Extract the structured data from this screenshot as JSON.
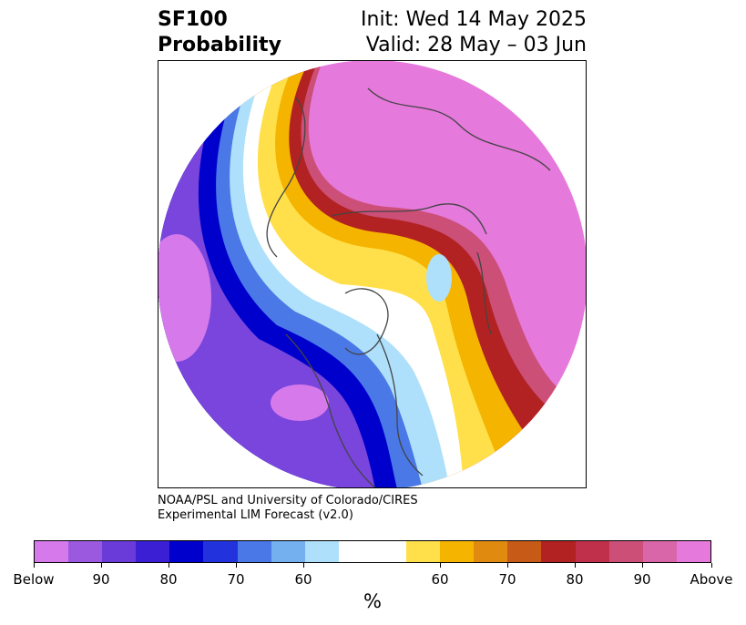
{
  "title": {
    "left_line1": "SF100",
    "left_line2": "Probability",
    "right_line1": "Init: Wed 14 May 2025",
    "right_line2": "Valid: 28 May – 03 Jun"
  },
  "credit": {
    "line1": "NOAA/PSL and University of Colorado/CIRES",
    "line2": "Experimental LIM Forecast (v2.0)"
  },
  "colorbar": {
    "unit": "%",
    "colors": [
      "#d67aeb",
      "#9b59e0",
      "#6a3bd8",
      "#3a1fd4",
      "#0000cc",
      "#2233dd",
      "#4a78e6",
      "#74b0f0",
      "#aee0fb",
      "#ffffff",
      "#ffffff",
      "#ffe04a",
      "#f4b400",
      "#e08a10",
      "#c85a18",
      "#b22222",
      "#c0304a",
      "#cc4f78",
      "#d966a8",
      "#e679dc"
    ],
    "tick_labels": [
      "Below",
      "90",
      "80",
      "70",
      "60",
      "60",
      "70",
      "80",
      "90",
      "Above"
    ]
  },
  "map": {
    "projection": "north-polar-stereographic",
    "colors": {
      "below_deep": "#d67aeb",
      "below_purple": "#7a45dc",
      "below_blue": "#0000cc",
      "below_mid": "#4a78e6",
      "below_light": "#aee0fb",
      "near_normal": "#ffffff",
      "above_yellow": "#ffe04a",
      "above_orange": "#f4b400",
      "above_red": "#b22222",
      "above_rose": "#cc4f78",
      "above_pink": "#e679dc",
      "coastline": "#444444"
    }
  }
}
